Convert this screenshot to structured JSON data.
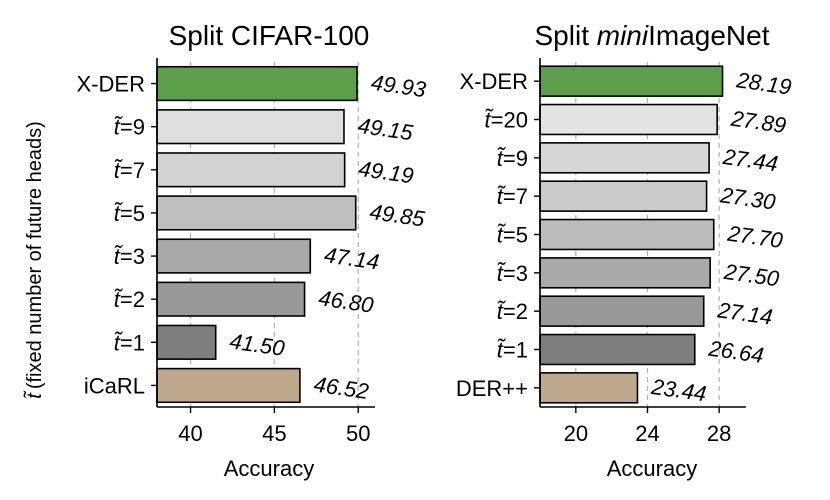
{
  "figure": {
    "ylabel_symbol": "t̃",
    "ylabel_text": "(fixed number of future heads)"
  },
  "chart_data": [
    {
      "type": "bar",
      "orientation": "horizontal",
      "title": "Split CIFAR-100",
      "xlabel": "Accuracy",
      "categories": [
        {
          "name": "X-DER",
          "tilde": false
        },
        {
          "name": "9",
          "tilde": true
        },
        {
          "name": "7",
          "tilde": true
        },
        {
          "name": "5",
          "tilde": true
        },
        {
          "name": "3",
          "tilde": true
        },
        {
          "name": "2",
          "tilde": true
        },
        {
          "name": "1",
          "tilde": true
        },
        {
          "name": "iCaRL",
          "tilde": false
        }
      ],
      "values": [
        49.93,
        49.15,
        49.19,
        49.85,
        47.14,
        46.8,
        41.5,
        46.52
      ],
      "value_labels": [
        "49.93",
        "49.15",
        "49.19",
        "49.85",
        "47.14",
        "46.80",
        "41.50",
        "46.52"
      ],
      "colors": [
        "#5c9e4a",
        "#dedede",
        "#d2d2d2",
        "#c0c0c0",
        "#a9a9a9",
        "#999999",
        "#7e7e7e",
        "#bfa98c"
      ],
      "xlim": [
        38,
        51
      ],
      "xticks": [
        40,
        45,
        50
      ],
      "grid": "x dashed"
    },
    {
      "type": "bar",
      "orientation": "horizontal",
      "title_parts": [
        "Split ",
        "mini",
        "ImageNet"
      ],
      "xlabel": "Accuracy",
      "categories": [
        {
          "name": "X-DER",
          "tilde": false
        },
        {
          "name": "20",
          "tilde": true
        },
        {
          "name": "9",
          "tilde": true
        },
        {
          "name": "7",
          "tilde": true
        },
        {
          "name": "5",
          "tilde": true
        },
        {
          "name": "3",
          "tilde": true
        },
        {
          "name": "2",
          "tilde": true
        },
        {
          "name": "1",
          "tilde": true
        },
        {
          "name": "DER++",
          "tilde": false
        }
      ],
      "values": [
        28.19,
        27.89,
        27.44,
        27.3,
        27.7,
        27.5,
        27.14,
        26.64,
        23.44
      ],
      "value_labels": [
        "28.19",
        "27.89",
        "27.44",
        "27.30",
        "27.70",
        "27.50",
        "27.14",
        "26.64",
        "23.44"
      ],
      "colors": [
        "#5c9e4a",
        "#e4e4e4",
        "#d6d6d6",
        "#cbcbcb",
        "#bcbcbc",
        "#aaaaaa",
        "#999999",
        "#7e7e7e",
        "#bfa98c"
      ],
      "xlim": [
        18,
        29.5
      ],
      "xticks": [
        20,
        24,
        28
      ],
      "grid": "x dashed"
    }
  ]
}
